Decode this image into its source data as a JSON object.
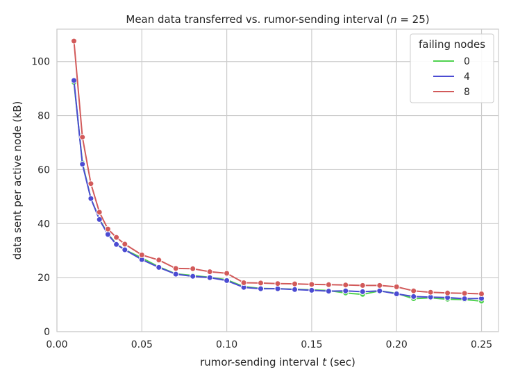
{
  "chart_data": {
    "type": "line",
    "title_prefix": "Mean data transferred vs. rumor-sending interval (",
    "title_var": "n",
    "title_suffix": " = 25)",
    "xlabel_prefix": "rumor-sending interval ",
    "xlabel_var": "t",
    "xlabel_suffix": " (sec)",
    "ylabel": "data sent per active node (kB)",
    "xlim": [
      0.0,
      0.26
    ],
    "ylim": [
      0,
      112
    ],
    "xticks": [
      "0.00",
      "0.05",
      "0.10",
      "0.15",
      "0.20",
      "0.25"
    ],
    "xtick_values": [
      0.0,
      0.05,
      0.1,
      0.15,
      0.2,
      0.25
    ],
    "yticks": [
      "0",
      "20",
      "40",
      "60",
      "80",
      "100"
    ],
    "ytick_values": [
      0,
      20,
      40,
      60,
      80,
      100
    ],
    "grid": true,
    "legend_title": "failing nodes",
    "legend_position": "top-right",
    "x": [
      0.01,
      0.015,
      0.02,
      0.025,
      0.03,
      0.035,
      0.04,
      0.05,
      0.06,
      0.07,
      0.08,
      0.09,
      0.1,
      0.11,
      0.12,
      0.13,
      0.14,
      0.15,
      0.16,
      0.17,
      0.18,
      0.19,
      0.2,
      0.21,
      0.22,
      0.23,
      0.24,
      0.25
    ],
    "series": [
      {
        "name": "0",
        "color": "#4fd24f",
        "values": [
          92.3,
          62.5,
          49.3,
          41.7,
          36.2,
          32.5,
          30.3,
          27.3,
          24.0,
          21.4,
          20.8,
          20.1,
          19.2,
          16.7,
          16.0,
          15.9,
          15.7,
          15.5,
          15.2,
          14.3,
          13.8,
          15.1,
          14.2,
          12.2,
          12.5,
          12.0,
          11.9,
          11.3
        ]
      },
      {
        "name": "4",
        "color": "#4b4bd2",
        "values": [
          93.0,
          62.0,
          49.3,
          41.5,
          36.0,
          32.3,
          30.3,
          26.7,
          23.8,
          21.3,
          20.5,
          20.0,
          18.9,
          16.4,
          15.9,
          15.9,
          15.6,
          15.3,
          15.0,
          15.1,
          14.8,
          15.1,
          14.0,
          13.0,
          12.8,
          12.6,
          12.2,
          12.3
        ]
      },
      {
        "name": "8",
        "color": "#d25a5a",
        "values": [
          107.6,
          72.0,
          54.8,
          44.2,
          38.0,
          34.9,
          32.4,
          28.4,
          26.5,
          23.4,
          23.3,
          22.2,
          21.6,
          18.1,
          18.0,
          17.8,
          17.7,
          17.5,
          17.4,
          17.3,
          17.1,
          17.1,
          16.6,
          15.1,
          14.6,
          14.3,
          14.2,
          14.0
        ]
      }
    ]
  }
}
